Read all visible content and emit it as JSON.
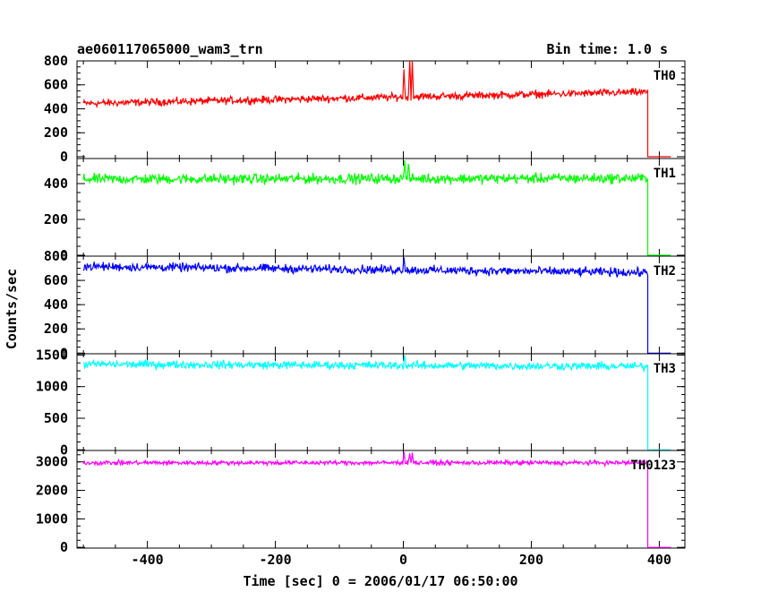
{
  "header": {
    "title": "ae060117065000_wam3_trn",
    "bin_time": "Bin time: 1.0 s"
  },
  "chart_data": {
    "type": "line",
    "xlabel": "Time [sec] 0 = 2006/01/17 06:50:00",
    "ylabel": "Counts/sec",
    "xlim": [
      -510,
      440
    ],
    "x_ticks": [
      -400,
      -200,
      0,
      200,
      400
    ],
    "grid": false,
    "panels": [
      {
        "label": "TH0",
        "color": "#ff0000",
        "ylim": [
          -15,
          800
        ],
        "y_ticks": [
          0,
          200,
          400,
          600,
          800
        ],
        "series": {
          "x_start": -500,
          "x_end": 382,
          "baseline_start": 445,
          "baseline_end": 540,
          "noise": 22,
          "spikes": [
            {
              "x": 1,
              "y": 730
            },
            {
              "x": 10,
              "y": 800
            },
            {
              "x": 14,
              "y": 800
            }
          ]
        },
        "after": {
          "x_start": 382,
          "x_end": 418,
          "value": 0
        }
      },
      {
        "label": "TH1",
        "color": "#00ff00",
        "ylim": [
          -5,
          540
        ],
        "y_ticks": [
          0,
          200,
          400
        ],
        "series": {
          "x_start": -500,
          "x_end": 382,
          "baseline_start": 425,
          "baseline_end": 430,
          "noise": 20,
          "spikes": [
            {
              "x": 2,
              "y": 530
            },
            {
              "x": 8,
              "y": 510
            }
          ]
        },
        "after": {
          "x_start": 382,
          "x_end": 418,
          "value": 0
        }
      },
      {
        "label": "TH2",
        "color": "#0000ff",
        "ylim": [
          -5,
          800
        ],
        "y_ticks": [
          0,
          200,
          400,
          600,
          800
        ],
        "series": {
          "x_start": -500,
          "x_end": 382,
          "baseline_start": 715,
          "baseline_end": 665,
          "noise": 25,
          "spikes": [
            {
              "x": 1,
              "y": 790
            }
          ]
        },
        "after": {
          "x_start": 382,
          "x_end": 418,
          "value": 0
        }
      },
      {
        "label": "TH3",
        "color": "#00ffff",
        "ylim": [
          -10,
          1520
        ],
        "y_ticks": [
          0,
          500,
          1000,
          1500
        ],
        "series": {
          "x_start": -500,
          "x_end": 382,
          "baseline_start": 1355,
          "baseline_end": 1320,
          "noise": 45,
          "spikes": [
            {
              "x": 2,
              "y": 1500
            }
          ]
        },
        "after": {
          "x_start": 382,
          "x_end": 418,
          "value": 0
        }
      },
      {
        "label": "TH0123",
        "color": "#ff00ff",
        "ylim": [
          -25,
          3400
        ],
        "y_ticks": [
          0,
          1000,
          2000,
          3000
        ],
        "series": {
          "x_start": -500,
          "x_end": 382,
          "baseline_start": 2970,
          "baseline_end": 2970,
          "noise": 55,
          "spikes": [
            {
              "x": 1,
              "y": 3350
            },
            {
              "x": 10,
              "y": 3300
            },
            {
              "x": 14,
              "y": 3320
            }
          ]
        },
        "after": {
          "x_start": 382,
          "x_end": 418,
          "value": 0
        }
      }
    ]
  }
}
